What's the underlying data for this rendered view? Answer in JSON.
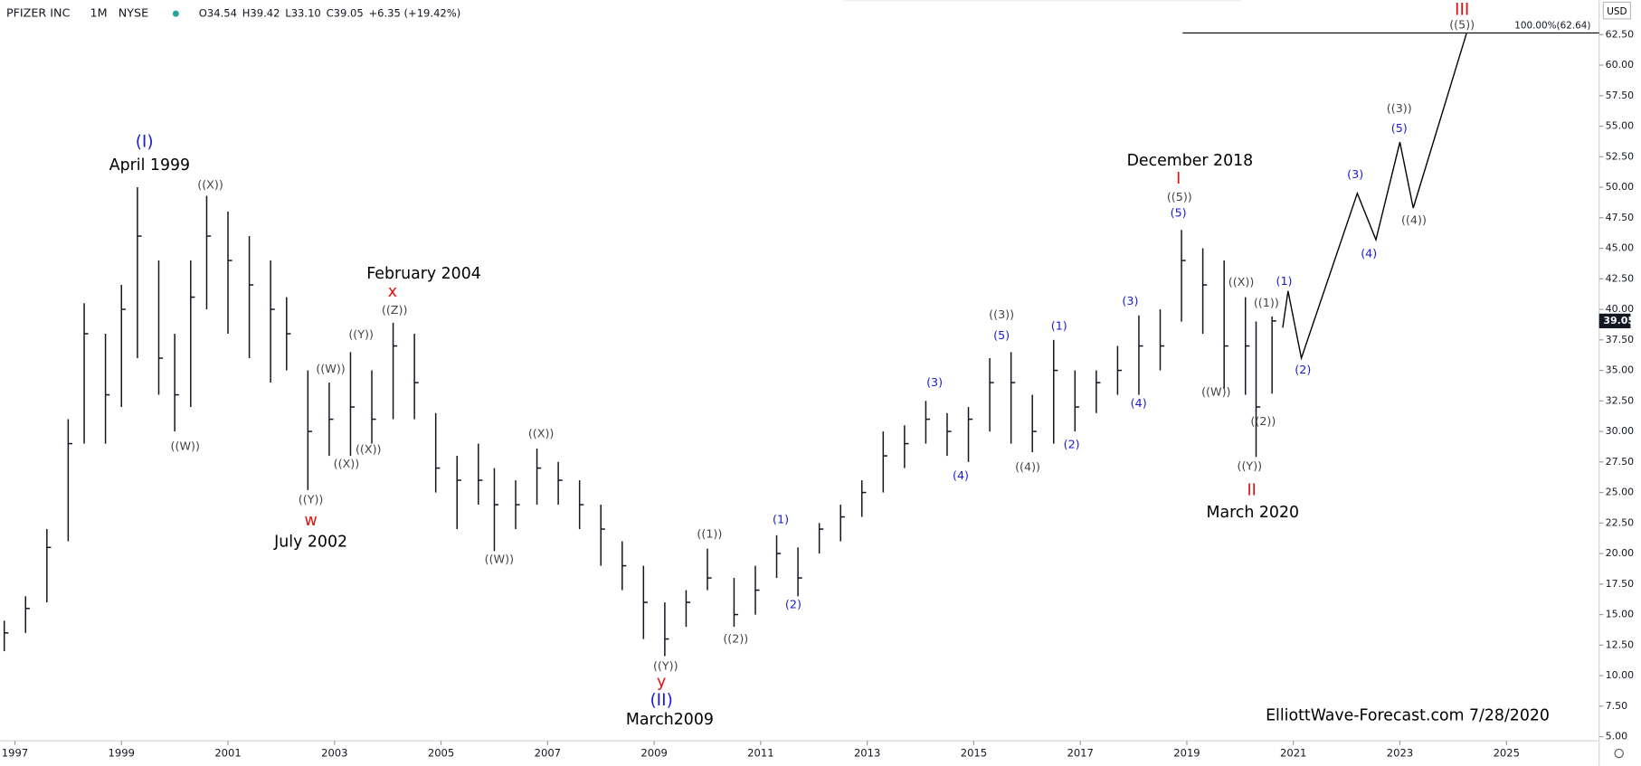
{
  "chart_data": {
    "type": "ohlc",
    "header": {
      "symbol": "PFIZER INC",
      "interval": "1M",
      "exchange": "NYSE",
      "ohlc": [
        "O34.54",
        "H39.42",
        "L33.10",
        "C39.05",
        "+6.35 (+19.42%)"
      ]
    },
    "currency": "USD",
    "color": "#131722",
    "x": [
      1996.8,
      1997.2,
      1997.6,
      1998.0,
      1998.3,
      1998.7,
      1999.0,
      1999.3,
      1999.7,
      2000.0,
      2000.3,
      2000.6,
      2001.0,
      2001.4,
      2001.8,
      2002.1,
      2002.5,
      2002.9,
      2003.3,
      2003.7,
      2004.1,
      2004.5,
      2004.9,
      2005.3,
      2005.7,
      2006.0,
      2006.4,
      2006.8,
      2007.2,
      2007.6,
      2008.0,
      2008.4,
      2008.8,
      2009.2,
      2009.6,
      2010.0,
      2010.5,
      2010.9,
      2011.3,
      2011.7,
      2012.1,
      2012.5,
      2012.9,
      2013.3,
      2013.7,
      2014.1,
      2014.5,
      2014.9,
      2015.3,
      2015.7,
      2016.1,
      2016.5,
      2016.9,
      2017.3,
      2017.7,
      2018.1,
      2018.5,
      2018.9,
      2019.3,
      2019.7,
      2020.1,
      2020.3,
      2020.6
    ],
    "high": [
      14.5,
      16.5,
      22,
      31,
      40.5,
      38,
      42,
      50,
      44,
      38,
      44,
      49.3,
      48,
      46,
      44,
      41,
      35,
      34,
      36.5,
      35,
      38.9,
      38,
      31.5,
      28,
      29,
      27,
      26,
      28.6,
      27.5,
      26,
      24,
      21,
      19,
      16,
      17,
      20.4,
      18,
      19,
      21.5,
      20.5,
      22.5,
      24,
      26,
      30,
      30.5,
      32.5,
      31.5,
      32,
      36,
      36.5,
      33,
      37.5,
      35,
      35,
      37,
      39.5,
      40,
      46.5,
      45,
      44,
      41,
      39,
      39.42
    ],
    "low": [
      12,
      13.5,
      16,
      21,
      29,
      29,
      32,
      36,
      33,
      30,
      32,
      40,
      38,
      36,
      34,
      35,
      25.2,
      28,
      28,
      29,
      31,
      31,
      25,
      22,
      24,
      20.2,
      22,
      24,
      24,
      22,
      19,
      17,
      13,
      11.6,
      14,
      17,
      14,
      15,
      18,
      16.5,
      20,
      21,
      23,
      25,
      27,
      29,
      28,
      27.5,
      30,
      29,
      28.3,
      29,
      30,
      31.5,
      33,
      33,
      35,
      39,
      38,
      33.5,
      33,
      27.9,
      33.1
    ],
    "close": [
      13.5,
      15.5,
      20.5,
      29,
      38,
      33,
      40,
      46,
      36,
      33,
      41,
      46,
      44,
      42,
      40,
      38,
      30,
      31,
      32,
      31,
      37,
      34,
      27,
      26,
      26,
      24,
      24,
      27,
      26,
      24,
      22,
      19,
      16,
      13,
      16,
      18,
      15,
      17,
      20,
      18,
      22,
      23,
      25,
      28,
      29,
      31,
      30,
      31,
      34,
      34,
      30,
      35,
      32,
      34,
      35,
      37,
      37,
      44,
      42,
      37,
      37,
      32,
      39.05
    ],
    "last_price": {
      "value": 39.05,
      "label": "39.05"
    },
    "projection": {
      "x": [
        2020.8,
        2020.9,
        2021.15,
        2022.2,
        2022.55,
        2023.0,
        2023.25,
        2024.25
      ],
      "y": [
        38.5,
        41.5,
        36,
        49.5,
        45.7,
        53.7,
        48.3,
        62.6
      ]
    },
    "fib_level": {
      "value": 62.64,
      "label": "100.00%(62.64)"
    },
    "xlim": [
      1996.72,
      2026.74
    ],
    "ylim": [
      4.66,
      65.33
    ],
    "xticks": [
      1997,
      1999,
      2001,
      2003,
      2005,
      2007,
      2009,
      2011,
      2013,
      2015,
      2017,
      2019,
      2021,
      2023,
      2025
    ],
    "yticks": [
      {
        "value": 5,
        "label": "5.00"
      },
      {
        "value": 7.5,
        "label": "7.50"
      },
      {
        "value": 10,
        "label": "10.00"
      },
      {
        "value": 12.5,
        "label": "12.50"
      },
      {
        "value": 15,
        "label": "15.00"
      },
      {
        "value": 17.5,
        "label": "17.50"
      },
      {
        "value": 20,
        "label": "20.00"
      },
      {
        "value": 22.5,
        "label": "22.50"
      },
      {
        "value": 25,
        "label": "25.00"
      },
      {
        "value": 27.5,
        "label": "27.50"
      },
      {
        "value": 30,
        "label": "30.00"
      },
      {
        "value": 32.5,
        "label": "32.50"
      },
      {
        "value": 35,
        "label": "35.00"
      },
      {
        "value": 37.5,
        "label": "37.50"
      },
      {
        "value": 40,
        "label": "40.00"
      },
      {
        "value": 42.5,
        "label": "42.50"
      },
      {
        "value": 45,
        "label": "45.00"
      },
      {
        "value": 47.5,
        "label": "47.50"
      },
      {
        "value": 50,
        "label": "50.00"
      },
      {
        "value": 52.5,
        "label": "52.50"
      },
      {
        "value": 55,
        "label": "55.00"
      },
      {
        "value": 57.5,
        "label": "57.50"
      },
      {
        "value": 60,
        "label": "60.00"
      },
      {
        "value": 62.5,
        "label": "62.50"
      }
    ],
    "grid": false,
    "annotations": [
      {
        "text": "(I)",
        "color": "#1a1adb"
      },
      {
        "text": "April 1999",
        "color": "#000"
      },
      {
        "text": "((X))",
        "color": "#444"
      },
      {
        "text": "((W))",
        "color": "#444"
      },
      {
        "text": "February 2004",
        "color": "#000"
      },
      {
        "text": "x",
        "color": "#e01010"
      },
      {
        "text": "((Z))",
        "color": "#444"
      },
      {
        "text": "((Y))",
        "color": "#444"
      },
      {
        "text": "((W))",
        "color": "#444"
      },
      {
        "text": "((X))",
        "color": "#444"
      },
      {
        "text": "((X))",
        "color": "#444"
      },
      {
        "text": "((Y))",
        "color": "#444"
      },
      {
        "text": "w",
        "color": "#e01010"
      },
      {
        "text": "July 2002",
        "color": "#000"
      },
      {
        "text": "((X))",
        "color": "#444"
      },
      {
        "text": "((W))",
        "color": "#444"
      },
      {
        "text": "((1))",
        "color": "#444"
      },
      {
        "text": "((2))",
        "color": "#444"
      },
      {
        "text": "((Y))",
        "color": "#444"
      },
      {
        "text": "y",
        "color": "#e01010"
      },
      {
        "text": "(II)",
        "color": "#1a1adb"
      },
      {
        "text": "March2009",
        "color": "#000"
      },
      {
        "text": "(1)",
        "color": "#1a1adb"
      },
      {
        "text": "(2)",
        "color": "#1a1adb"
      },
      {
        "text": "(3)",
        "color": "#1a1adb"
      },
      {
        "text": "(4)",
        "color": "#1a1adb"
      },
      {
        "text": "((3))",
        "color": "#444"
      },
      {
        "text": "(5)",
        "color": "#1a1adb"
      },
      {
        "text": "((4))",
        "color": "#444"
      },
      {
        "text": "(1)",
        "color": "#1a1adb"
      },
      {
        "text": "(2)",
        "color": "#1a1adb"
      },
      {
        "text": "(3)",
        "color": "#1a1adb"
      },
      {
        "text": "(4)",
        "color": "#1a1adb"
      },
      {
        "text": "December 2018",
        "color": "#000"
      },
      {
        "text": "I",
        "color": "#e01010"
      },
      {
        "text": "((5))",
        "color": "#444"
      },
      {
        "text": "(5)",
        "color": "#1a1adb"
      },
      {
        "text": "((X))",
        "color": "#444"
      },
      {
        "text": "((W))",
        "color": "#444"
      },
      {
        "text": "((1))",
        "color": "#444"
      },
      {
        "text": "((2))",
        "color": "#444"
      },
      {
        "text": "((Y))",
        "color": "#444"
      },
      {
        "text": "II",
        "color": "#e01010"
      },
      {
        "text": "March 2020",
        "color": "#000"
      },
      {
        "text": "(1)",
        "color": "#1a1adb"
      },
      {
        "text": "(2)",
        "color": "#1a1adb"
      },
      {
        "text": "(3)",
        "color": "#1a1adb"
      },
      {
        "text": "(4)",
        "color": "#1a1adb"
      },
      {
        "text": "((3))",
        "color": "#444"
      },
      {
        "text": "(5)",
        "color": "#1a1adb"
      },
      {
        "text": "((4))",
        "color": "#444"
      },
      {
        "text": "III",
        "color": "#e01010"
      },
      {
        "text": "((5))",
        "color": "#444"
      },
      {
        "text": "ElliottWave-Forecast.com 7/28/2020",
        "color": "#000"
      }
    ]
  }
}
